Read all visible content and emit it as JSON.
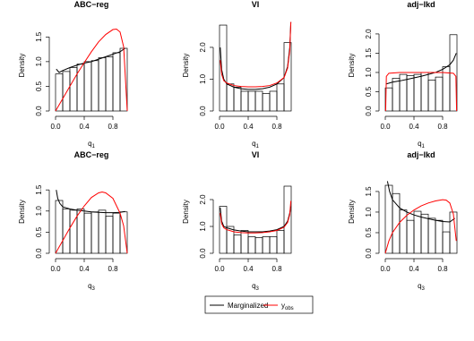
{
  "chart_data": [
    {
      "type": "histogram",
      "title": "ABC−reg",
      "xlabel": "q",
      "xlabel_sub": "1",
      "ylabel": "Density",
      "bins": [
        0,
        0.1,
        0.2,
        0.3,
        0.4,
        0.5,
        0.6,
        0.7,
        0.8,
        0.9,
        1.0
      ],
      "values": [
        0.75,
        0.8,
        0.88,
        0.95,
        1.0,
        1.02,
        1.08,
        1.1,
        1.18,
        1.27
      ],
      "series": [
        {
          "color": "#000000",
          "x": [
            0.01,
            0.05,
            0.1,
            0.2,
            0.3,
            0.4,
            0.5,
            0.6,
            0.7,
            0.8,
            0.9,
            0.97
          ],
          "values": [
            0.85,
            0.78,
            0.82,
            0.88,
            0.93,
            0.97,
            1.0,
            1.05,
            1.1,
            1.15,
            1.2,
            1.27
          ]
        },
        {
          "color": "#ff0000",
          "x": [
            0,
            0.1,
            0.2,
            0.3,
            0.4,
            0.5,
            0.6,
            0.7,
            0.8,
            0.85,
            0.9,
            0.95,
            1.0
          ],
          "values": [
            0,
            0.25,
            0.5,
            0.75,
            0.98,
            1.2,
            1.4,
            1.55,
            1.65,
            1.66,
            1.6,
            1.3,
            0
          ]
        }
      ],
      "xlim": [
        0,
        1
      ],
      "ylim": [
        0,
        1.85
      ],
      "xticks": [
        {
          "value": 0,
          "label": "0.0"
        },
        {
          "value": 0.4,
          "label": "0.4"
        },
        {
          "value": 0.8,
          "label": "0.8"
        }
      ],
      "yticks": [
        {
          "value": 0,
          "label": "0.0"
        },
        {
          "value": 0.5,
          "label": "0.5"
        },
        {
          "value": 1,
          "label": "1.0"
        },
        {
          "value": 1.5,
          "label": "1.5"
        }
      ]
    },
    {
      "type": "histogram",
      "title": "VI",
      "xlabel": "q",
      "xlabel_sub": "1",
      "ylabel": "Density",
      "bins": [
        0,
        0.1,
        0.2,
        0.3,
        0.4,
        0.5,
        0.6,
        0.7,
        0.8,
        0.9,
        1.0
      ],
      "values": [
        2.7,
        0.85,
        0.75,
        0.62,
        0.62,
        0.62,
        0.55,
        0.62,
        0.85,
        2.15
      ],
      "series": [
        {
          "color": "#000000",
          "x": [
            0.01,
            0.03,
            0.06,
            0.1,
            0.2,
            0.3,
            0.4,
            0.5,
            0.6,
            0.7,
            0.8,
            0.9,
            0.95,
            0.98,
            0.995
          ],
          "values": [
            2.0,
            1.3,
            1.0,
            0.85,
            0.75,
            0.7,
            0.68,
            0.68,
            0.7,
            0.75,
            0.85,
            1.05,
            1.4,
            2.0,
            2.8
          ]
        },
        {
          "color": "#ff0000",
          "x": [
            0.01,
            0.03,
            0.06,
            0.1,
            0.2,
            0.3,
            0.4,
            0.5,
            0.6,
            0.7,
            0.8,
            0.9,
            0.95,
            0.98,
            0.995
          ],
          "values": [
            1.6,
            1.15,
            0.95,
            0.88,
            0.8,
            0.77,
            0.76,
            0.76,
            0.77,
            0.8,
            0.88,
            1.05,
            1.35,
            1.9,
            2.8
          ]
        }
      ],
      "xlim": [
        0,
        1
      ],
      "ylim": [
        0,
        2.87
      ],
      "xticks": [
        {
          "value": 0,
          "label": "0.0"
        },
        {
          "value": 0.4,
          "label": "0.4"
        },
        {
          "value": 0.8,
          "label": "0.8"
        }
      ],
      "yticks": [
        {
          "value": 0,
          "label": "0.0"
        },
        {
          "value": 1,
          "label": "1.0"
        },
        {
          "value": 2,
          "label": "2.0"
        }
      ]
    },
    {
      "type": "histogram",
      "title": "adj−lkd",
      "xlabel": "q",
      "xlabel_sub": "1",
      "ylabel": "Density",
      "bins": [
        0,
        0.1,
        0.2,
        0.3,
        0.4,
        0.5,
        0.6,
        0.7,
        0.8,
        0.9,
        1.0
      ],
      "values": [
        0.6,
        0.85,
        0.95,
        0.92,
        0.95,
        1.0,
        0.8,
        0.88,
        1.15,
        1.98
      ],
      "series": [
        {
          "color": "#000000",
          "x": [
            0.01,
            0.1,
            0.2,
            0.3,
            0.4,
            0.5,
            0.6,
            0.7,
            0.8,
            0.9,
            0.95,
            0.99
          ],
          "values": [
            0.7,
            0.75,
            0.78,
            0.82,
            0.86,
            0.9,
            0.95,
            1.0,
            1.08,
            1.2,
            1.32,
            1.5
          ]
        },
        {
          "color": "#ff0000",
          "x": [
            0.005,
            0.015,
            0.05,
            0.2,
            0.4,
            0.6,
            0.8,
            0.95,
            0.985,
            0.995
          ],
          "values": [
            0,
            0.9,
            0.98,
            1.0,
            1.0,
            1.0,
            1.0,
            0.98,
            0.9,
            0
          ]
        }
      ],
      "xlim": [
        0,
        1
      ],
      "ylim": [
        0,
        2.37
      ],
      "xticks": [
        {
          "value": 0,
          "label": "0.0"
        },
        {
          "value": 0.4,
          "label": "0.4"
        },
        {
          "value": 0.8,
          "label": "0.8"
        }
      ],
      "yticks": [
        {
          "value": 0,
          "label": "0.0"
        },
        {
          "value": 0.5,
          "label": "0.5"
        },
        {
          "value": 1,
          "label": "1.0"
        },
        {
          "value": 1.5,
          "label": "1.5"
        },
        {
          "value": 2,
          "label": "2.0"
        }
      ]
    },
    {
      "type": "histogram",
      "title": "ABC−reg",
      "xlabel": "q",
      "xlabel_sub": "3",
      "ylabel": "Density",
      "bins": [
        0,
        0.1,
        0.2,
        0.3,
        0.4,
        0.5,
        0.6,
        0.7,
        0.8,
        0.9,
        1.0
      ],
      "values": [
        1.25,
        1.05,
        1.02,
        1.05,
        0.95,
        0.98,
        1.02,
        0.88,
        0.95,
        0.98
      ],
      "series": [
        {
          "color": "#000000",
          "x": [
            0.01,
            0.03,
            0.06,
            0.1,
            0.2,
            0.3,
            0.4,
            0.5,
            0.6,
            0.7,
            0.8,
            0.9,
            0.97
          ],
          "values": [
            1.5,
            1.3,
            1.18,
            1.1,
            1.05,
            1.02,
            1.0,
            0.98,
            0.97,
            0.96,
            0.96,
            0.97,
            0.99
          ]
        },
        {
          "color": "#ff0000",
          "x": [
            0,
            0.1,
            0.2,
            0.3,
            0.4,
            0.5,
            0.6,
            0.65,
            0.7,
            0.8,
            0.9,
            0.95,
            1.0
          ],
          "values": [
            0,
            0.3,
            0.6,
            0.88,
            1.12,
            1.32,
            1.43,
            1.45,
            1.43,
            1.3,
            0.95,
            0.65,
            0
          ]
        }
      ],
      "xlim": [
        0,
        1
      ],
      "ylim": [
        0,
        1.97
      ],
      "xticks": [
        {
          "value": 0,
          "label": "0.0"
        },
        {
          "value": 0.4,
          "label": "0.4"
        },
        {
          "value": 0.8,
          "label": "0.8"
        }
      ],
      "yticks": [
        {
          "value": 0,
          "label": "0.0"
        },
        {
          "value": 0.5,
          "label": "0.5"
        },
        {
          "value": 1,
          "label": "1.0"
        },
        {
          "value": 1.5,
          "label": "1.5"
        }
      ]
    },
    {
      "type": "histogram",
      "title": "VI",
      "xlabel": "q",
      "xlabel_sub": "3",
      "ylabel": "Density",
      "bins": [
        0,
        0.1,
        0.2,
        0.3,
        0.4,
        0.5,
        0.6,
        0.7,
        0.8,
        0.9,
        1.0
      ],
      "values": [
        1.75,
        1.0,
        0.68,
        0.85,
        0.62,
        0.58,
        0.62,
        0.62,
        0.85,
        2.5
      ],
      "series": [
        {
          "color": "#000000",
          "x": [
            0.01,
            0.03,
            0.06,
            0.1,
            0.2,
            0.3,
            0.4,
            0.5,
            0.6,
            0.7,
            0.8,
            0.9,
            0.95,
            0.98,
            0.995
          ],
          "values": [
            1.7,
            1.2,
            1.0,
            0.95,
            0.87,
            0.83,
            0.8,
            0.8,
            0.8,
            0.83,
            0.88,
            1.0,
            1.2,
            1.5,
            1.75
          ]
        },
        {
          "color": "#ff0000",
          "x": [
            0.01,
            0.03,
            0.06,
            0.1,
            0.2,
            0.3,
            0.4,
            0.5,
            0.6,
            0.7,
            0.8,
            0.9,
            0.95,
            0.98,
            0.995
          ],
          "values": [
            1.5,
            1.1,
            0.95,
            0.88,
            0.8,
            0.77,
            0.76,
            0.76,
            0.77,
            0.8,
            0.85,
            0.97,
            1.15,
            1.45,
            1.95
          ]
        }
      ],
      "xlim": [
        0,
        1
      ],
      "ylim": [
        0,
        3.1
      ],
      "xticks": [
        {
          "value": 0,
          "label": "0.0"
        },
        {
          "value": 0.4,
          "label": "0.4"
        },
        {
          "value": 0.8,
          "label": "0.8"
        }
      ],
      "yticks": [
        {
          "value": 0,
          "label": "0.0"
        },
        {
          "value": 1,
          "label": "1.0"
        },
        {
          "value": 2,
          "label": "2.0"
        }
      ]
    },
    {
      "type": "histogram",
      "title": "adj−lkd",
      "xlabel": "q",
      "xlabel_sub": "3",
      "ylabel": "Density",
      "bins": [
        0,
        0.1,
        0.2,
        0.3,
        0.4,
        0.5,
        0.6,
        0.7,
        0.8,
        0.9,
        1.0
      ],
      "values": [
        1.65,
        1.45,
        1.05,
        0.8,
        1.02,
        0.95,
        0.85,
        0.8,
        0.52,
        1.0
      ],
      "series": [
        {
          "color": "#000000",
          "x": [
            0.03,
            0.06,
            0.1,
            0.2,
            0.3,
            0.4,
            0.5,
            0.6,
            0.7,
            0.8,
            0.9,
            0.97
          ],
          "values": [
            1.75,
            1.5,
            1.3,
            1.1,
            1.0,
            0.93,
            0.88,
            0.84,
            0.8,
            0.77,
            0.76,
            0.85
          ]
        },
        {
          "color": "#ff0000",
          "x": [
            0,
            0.05,
            0.1,
            0.2,
            0.3,
            0.4,
            0.5,
            0.6,
            0.7,
            0.8,
            0.85,
            0.9,
            0.95,
            0.99
          ],
          "values": [
            0,
            0.3,
            0.5,
            0.75,
            0.92,
            1.05,
            1.15,
            1.22,
            1.27,
            1.3,
            1.29,
            1.22,
            0.95,
            0.3
          ]
        }
      ],
      "xlim": [
        0,
        1
      ],
      "ylim": [
        0,
        2.02
      ],
      "xticks": [
        {
          "value": 0,
          "label": "0.0"
        },
        {
          "value": 0.4,
          "label": "0.4"
        },
        {
          "value": 0.8,
          "label": "0.8"
        }
      ],
      "yticks": [
        {
          "value": 0,
          "label": "0.0"
        },
        {
          "value": 0.5,
          "label": "0.5"
        },
        {
          "value": 1,
          "label": "1.0"
        },
        {
          "value": 1.5,
          "label": "1.5"
        }
      ]
    }
  ],
  "legend": [
    {
      "name": "Marginalized",
      "color": "#000000"
    },
    {
      "name": "y",
      "subscript": "obs",
      "color": "#ff0000"
    }
  ]
}
